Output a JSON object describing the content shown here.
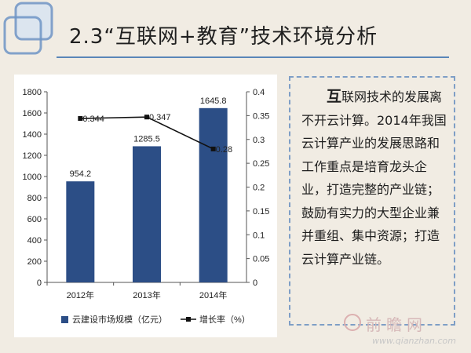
{
  "title": "2.3“互联网+教育”技术环境分析",
  "body_text": {
    "first_char": "互",
    "rest": "联网技术的发展离不开云计算。2014年我国云计算产业的发展思路和工作重点是培育龙头企业，打造完整的产业链；鼓励有实力的大型企业兼并重组、集中资源；打造云计算产业链。"
  },
  "watermark": {
    "name": "前瞻网",
    "url": "www.qianzhan.com"
  },
  "colors": {
    "bar": "#2c4e86",
    "line": "#111111",
    "title_rule": "#5a86b8",
    "textbox_border": "#7e9ec6"
  },
  "chart_data": {
    "type": "bar",
    "categories": [
      "2012年",
      "2013年",
      "2014年"
    ],
    "series": [
      {
        "name": "云建设市场规模（亿元）",
        "type": "bar",
        "axis": "left",
        "values": [
          954.2,
          1285.5,
          1645.8
        ],
        "labels": [
          "954.2",
          "1285.5",
          "1645.8"
        ]
      },
      {
        "name": "增长率（%）",
        "type": "line",
        "axis": "right",
        "values": [
          0.344,
          0.347,
          0.28
        ],
        "labels": [
          "0.344",
          "0.347",
          "0.28"
        ]
      }
    ],
    "left_axis": {
      "min": 0,
      "max": 1800,
      "ticks": [
        "0",
        "200",
        "400",
        "600",
        "800",
        "1000",
        "1200",
        "1400",
        "1600",
        "1800"
      ]
    },
    "right_axis": {
      "min": 0,
      "max": 0.4,
      "ticks": [
        "0",
        "0.05",
        "0.1",
        "0.15",
        "0.2",
        "0.25",
        "0.3",
        "0.35",
        "0.4"
      ]
    },
    "legend_position": "bottom",
    "grid": false
  }
}
